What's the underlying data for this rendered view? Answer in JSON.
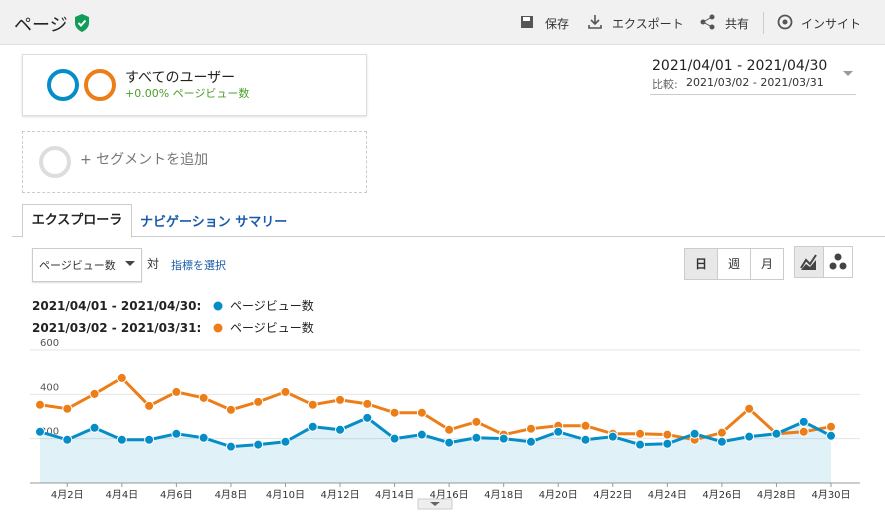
{
  "header": {
    "title": "ページ",
    "actions": [
      "保存",
      "エクスポート",
      "共有",
      "インサイト"
    ]
  },
  "segments": {
    "name": "すべてのユーザー",
    "change": "+0.00% ページビュー数",
    "add": "+ セグメントを追加"
  },
  "date_range": {
    "primary": "2021/04/01 - 2021/04/30",
    "compare_label": "比較:",
    "compare": "2021/03/02 - 2021/03/31"
  },
  "tabs": [
    "エクスプローラ",
    "ナビゲーション サマリー"
  ],
  "controls": {
    "metric": "ページビュー数",
    "vs": "対",
    "select_metric": "指標を選択",
    "periods": [
      "日",
      "週",
      "月"
    ]
  },
  "chart_data": {
    "type": "line",
    "categories": [
      null,
      "4月2日",
      null,
      "4月4日",
      null,
      "4月6日",
      null,
      "4月8日",
      null,
      "4月10日",
      null,
      "4月12日",
      null,
      "4月14日",
      null,
      "4月16日",
      null,
      "4月18日",
      null,
      "4月20日",
      null,
      "4月22日",
      null,
      "4月24日",
      null,
      "4月26日",
      null,
      "4月28日",
      null,
      "4月30日"
    ],
    "series": [
      {
        "label": "2021/04/01 - 2021/04/30:",
        "name": "ページビュー数",
        "color": "#058dc7",
        "values": [
          231,
          195,
          249,
          195,
          195,
          222,
          204,
          164,
          173,
          186,
          254,
          240,
          294,
          200,
          218,
          182,
          204,
          200,
          186,
          231,
          195,
          209,
          173,
          177,
          222,
          186,
          209,
          222,
          276,
          213
        ]
      },
      {
        "label": "2021/03/02 - 2021/03/31:",
        "name": "ページビュー数",
        "color": "#ed7e17",
        "values": [
          353,
          335,
          402,
          474,
          348,
          411,
          384,
          330,
          366,
          411,
          353,
          375,
          357,
          317,
          317,
          240,
          276,
          218,
          245,
          258,
          258,
          222,
          222,
          218,
          195,
          227,
          335,
          222,
          231,
          254
        ]
      }
    ],
    "ylim": [
      0,
      600
    ],
    "yticks": [
      200,
      400,
      600
    ],
    "grid": true,
    "area": true
  }
}
